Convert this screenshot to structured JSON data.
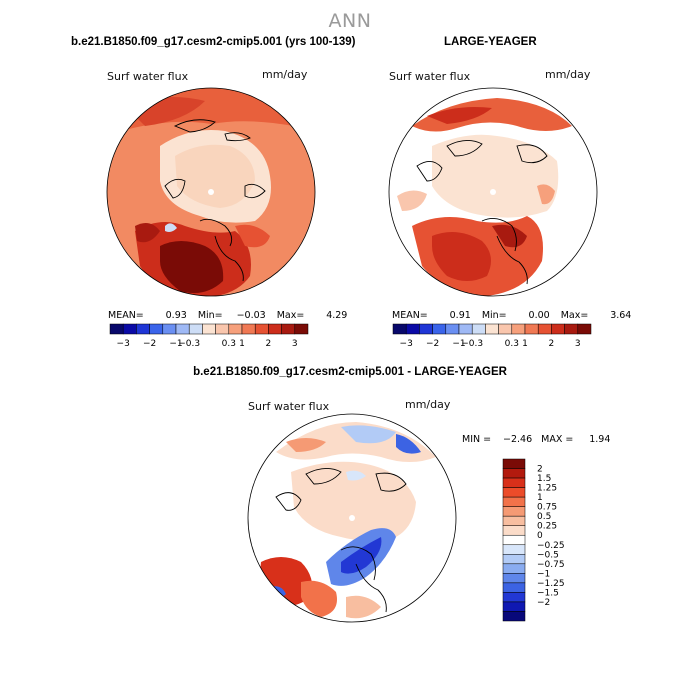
{
  "page": {
    "title": "ANN"
  },
  "panels": [
    {
      "id": "case",
      "title": "b.e21.B1850.f09_g17.cesm2-cmip5.001 (yrs 100-139)",
      "variable": "Surf water flux",
      "units": "mm/day",
      "stats": {
        "mean_label": "MEAN=",
        "mean": "0.93",
        "min_label": "Min=",
        "min": "−0.03",
        "max_label": "Max=",
        "max": "4.29"
      },
      "colorbar": {
        "colors": [
          "#08086b",
          "#0a0aa6",
          "#1f36d6",
          "#3a64ea",
          "#6a8ff2",
          "#9fb9f5",
          "#cdddf6",
          "#fbe3d2",
          "#f9c6ad",
          "#f6a07c",
          "#f07954",
          "#e65233",
          "#cc2d1b",
          "#a81a10",
          "#7a0b06"
        ],
        "ticks": [
          "−3",
          "−2",
          "−1",
          "−0.3",
          "0.3",
          "1",
          "2",
          "3"
        ]
      }
    },
    {
      "id": "obs",
      "title": "LARGE-YEAGER",
      "variable": "Surf water flux",
      "units": "mm/day",
      "stats": {
        "mean_label": "MEAN=",
        "mean": "0.91",
        "min_label": "Min=",
        "min": "0.00",
        "max_label": "Max=",
        "max": "3.64"
      },
      "colorbar": {
        "colors": [
          "#08086b",
          "#0a0aa6",
          "#1f36d6",
          "#3a64ea",
          "#6a8ff2",
          "#9fb9f5",
          "#cdddf6",
          "#fbe3d2",
          "#f9c6ad",
          "#f6a07c",
          "#f07954",
          "#e65233",
          "#cc2d1b",
          "#a81a10",
          "#7a0b06"
        ],
        "ticks": [
          "−3",
          "−2",
          "−1",
          "−0.3",
          "0.3",
          "1",
          "2",
          "3"
        ]
      }
    },
    {
      "id": "diff",
      "title": "b.e21.B1850.f09_g17.cesm2-cmip5.001 - LARGE-YEAGER",
      "variable": "Surf water flux",
      "units": "mm/day",
      "stats": {
        "min_label": "MIN =",
        "min": "−2.46",
        "max_label": "MAX =",
        "max": "1.94"
      },
      "colorbar": {
        "colors": [
          "#7a0b06",
          "#b21a0e",
          "#d8301a",
          "#ec4c2a",
          "#f2724a",
          "#f59a74",
          "#f8bea0",
          "#fbdcc9",
          "#ffffff",
          "#d8e6fa",
          "#b2cbf6",
          "#8aacf0",
          "#5f86ea",
          "#3c63e3",
          "#2238d4",
          "#0f18b2",
          "#08087a"
        ],
        "ticks": [
          "2",
          "1.5",
          "1.25",
          "1",
          "0.75",
          "0.5",
          "0.25",
          "0",
          "−0.25",
          "−0.5",
          "−0.75",
          "−1",
          "−1.25",
          "−1.5",
          "−2"
        ]
      }
    }
  ],
  "chart_data": [
    {
      "type": "heatmap",
      "title": "b.e21.B1850.f09_g17.cesm2-cmip5.001 (yrs 100-139)",
      "projection": "polar stereographic (north pole)",
      "variable": "Surf water flux",
      "units": "mm/day",
      "mean": 0.93,
      "min": -0.03,
      "max": 4.29,
      "contour_levels": [
        -3,
        -2,
        -1,
        -0.3,
        0.3,
        1,
        2,
        3
      ]
    },
    {
      "type": "heatmap",
      "title": "LARGE-YEAGER",
      "projection": "polar stereographic (north pole)",
      "variable": "Surf water flux",
      "units": "mm/day",
      "mean": 0.91,
      "min": 0.0,
      "max": 3.64,
      "contour_levels": [
        -3,
        -2,
        -1,
        -0.3,
        0.3,
        1,
        2,
        3
      ]
    },
    {
      "type": "heatmap",
      "title": "b.e21.B1850.f09_g17.cesm2-cmip5.001 - LARGE-YEAGER",
      "projection": "polar stereographic (north pole)",
      "variable": "Surf water flux",
      "units": "mm/day",
      "min": -2.46,
      "max": 1.94,
      "contour_levels": [
        2,
        1.5,
        1.25,
        1,
        0.75,
        0.5,
        0.25,
        0,
        -0.25,
        -0.5,
        -0.75,
        -1,
        -1.25,
        -1.5,
        -2
      ]
    }
  ]
}
